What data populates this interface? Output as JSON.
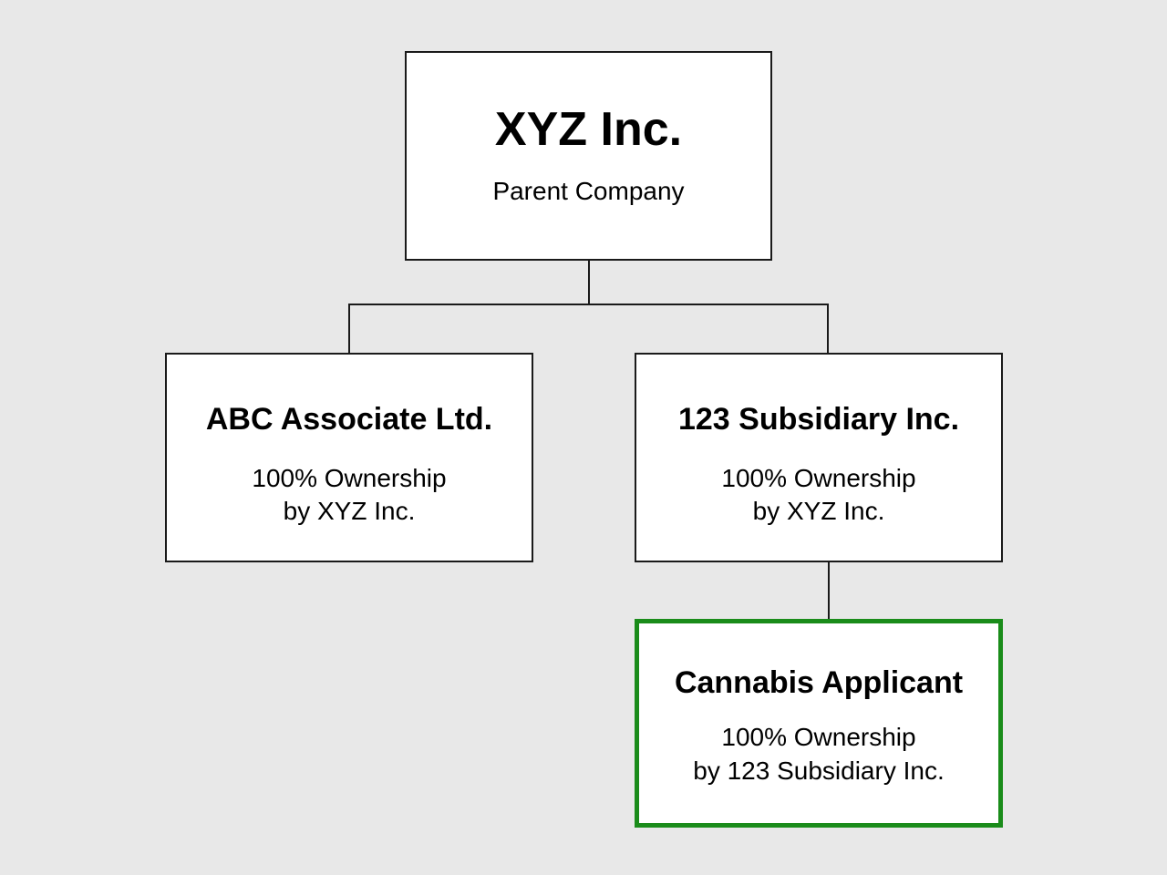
{
  "diagram": {
    "nodes": [
      {
        "id": "parent",
        "title": "XYZ Inc.",
        "lines": [
          "Parent Company"
        ]
      },
      {
        "id": "abc",
        "title": "ABC Associate Ltd.",
        "lines": [
          "100% Ownership",
          "by XYZ Inc."
        ]
      },
      {
        "id": "sub123",
        "title": "123 Subsidiary Inc.",
        "lines": [
          "100% Ownership",
          "by XYZ Inc."
        ]
      },
      {
        "id": "applicant",
        "title": "Cannabis Applicant",
        "lines": [
          "100% Ownership",
          "by 123 Subsidiary Inc."
        ],
        "highlight": true
      }
    ],
    "edges": [
      {
        "from": "parent",
        "to": "abc"
      },
      {
        "from": "parent",
        "to": "sub123"
      },
      {
        "from": "sub123",
        "to": "applicant"
      }
    ],
    "colors": {
      "background": "#e8e8e8",
      "box_fill": "#ffffff",
      "box_border": "#1a1a1a",
      "highlight_border": "#1a8c1a",
      "connector": "#1a1a1a"
    }
  }
}
